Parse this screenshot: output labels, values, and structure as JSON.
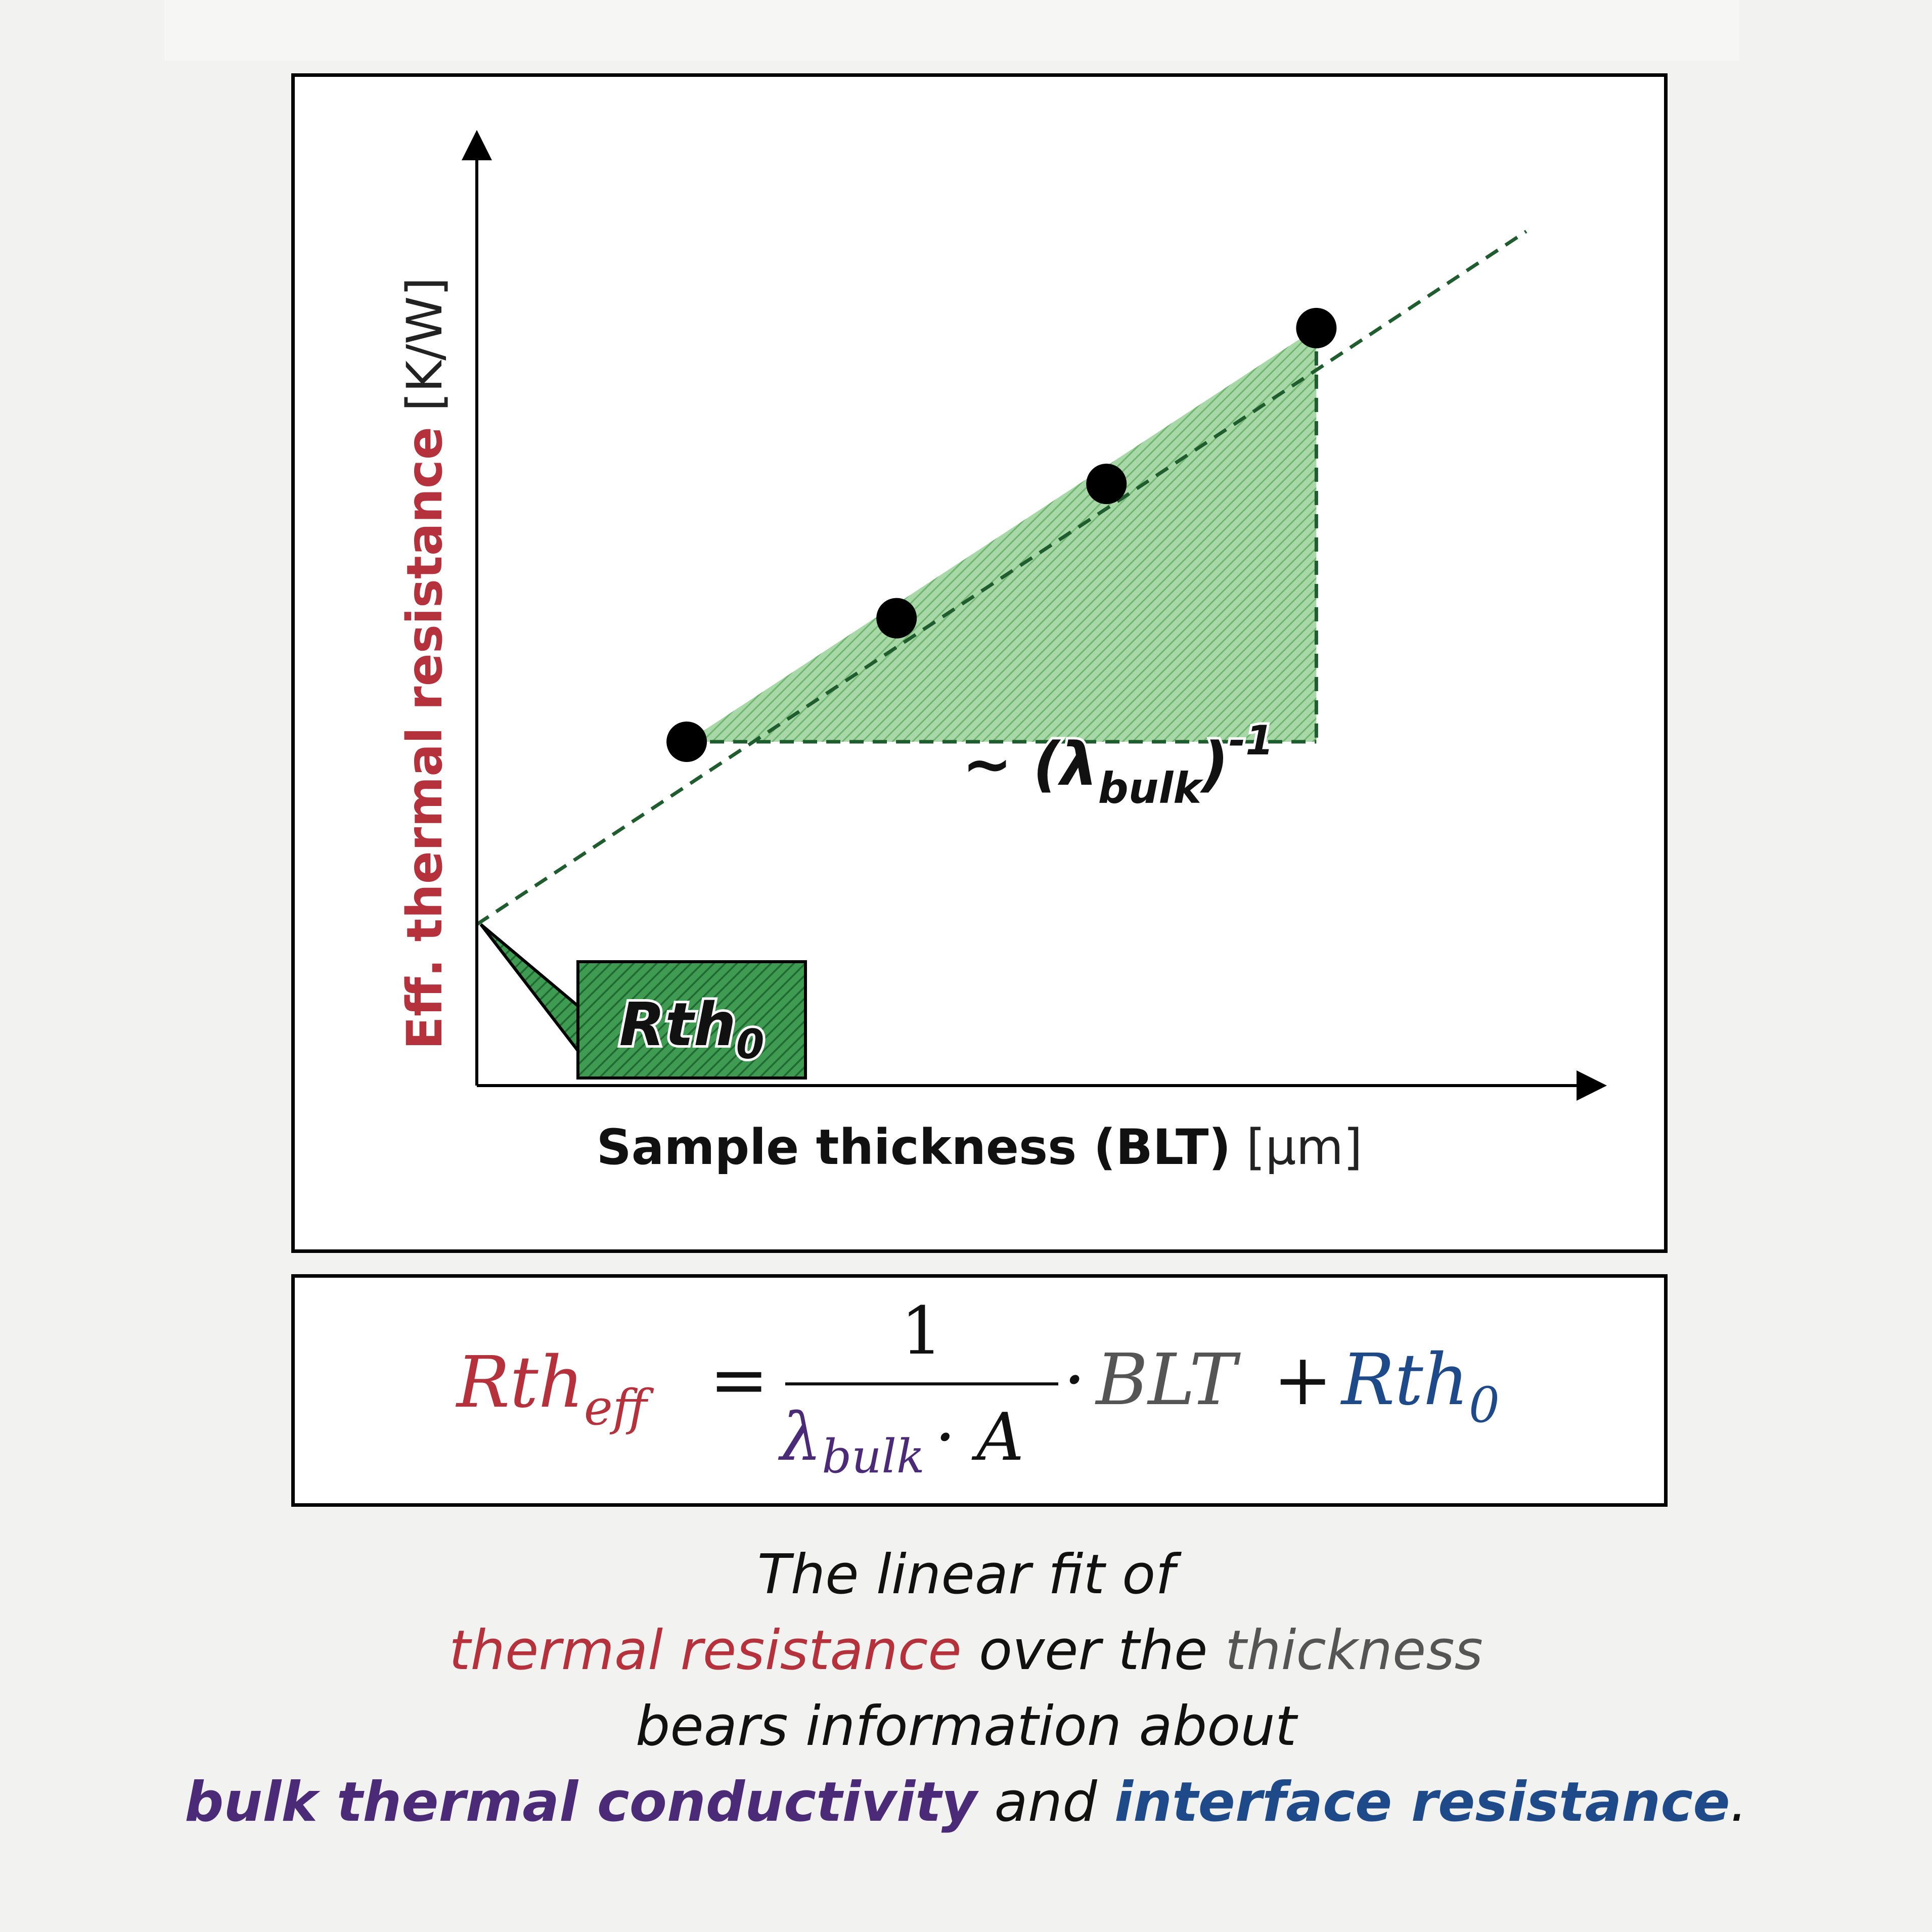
{
  "colors": {
    "red": "#b5313c",
    "purple": "#4b2a78",
    "blue": "#1f4a8a",
    "gray": "#555555",
    "green_fill": "#7fbf7f",
    "green_dark": "#1f5c2e"
  },
  "chart_data": {
    "type": "scatter",
    "x": [
      1,
      2,
      3,
      4
    ],
    "y": [
      3.2,
      4.35,
      5.6,
      7.05
    ],
    "fit_line": {
      "slope": 1.29,
      "intercept": 1.5
    },
    "xlim": [
      0,
      5.3
    ],
    "ylim": [
      0,
      8.8
    ],
    "xlabel": {
      "main": "Sample thickness (BLT)",
      "unit": "[µm]"
    },
    "ylabel": {
      "main": "Eff. thermal resistance",
      "unit": "[K/W]"
    },
    "triangle_label": {
      "prefix": "~ (λ",
      "sub": "bulk",
      "suffix": ")",
      "sup": "-1"
    },
    "intercept_label": {
      "main": "Rth",
      "sub": "0"
    }
  },
  "formula": {
    "lhs": "Rth",
    "lhs_sub": "eff",
    "equals": "=",
    "numerator": "1",
    "den_lambda": "λ",
    "den_sub": "bulk",
    "den_rest": "· A",
    "dot": "·",
    "blt": "BLT",
    "plus": "+",
    "rth0": "Rth",
    "rth0_sub": "0"
  },
  "caption": {
    "line1": "The linear fit of",
    "line2_a": "thermal resistance",
    "line2_b": " over the ",
    "line2_c": "thickness",
    "line3": "bears information about",
    "line4_a": "bulk thermal conductivity",
    "line4_b": " and ",
    "line4_c": "interface resistance",
    "line4_d": "."
  }
}
